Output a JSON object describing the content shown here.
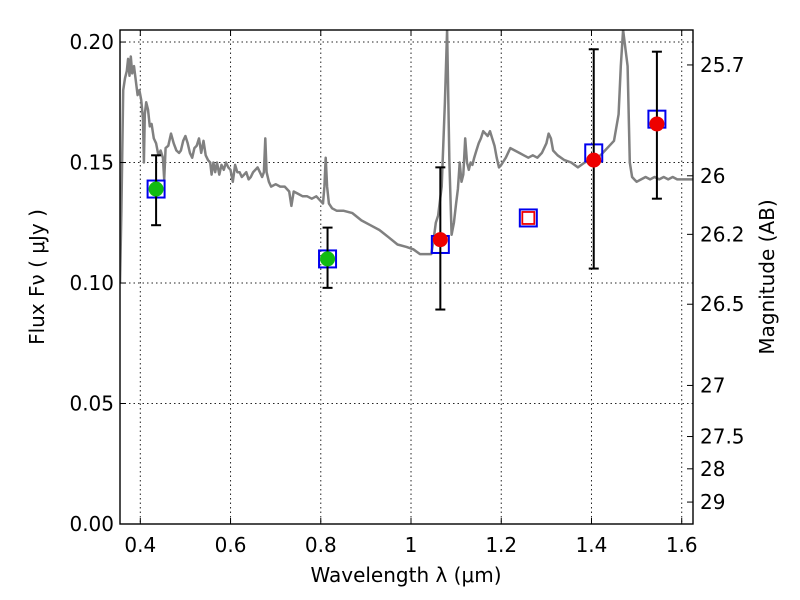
{
  "chart_data": {
    "type": "scatter",
    "xlabel": "Wavelength  λ (μm)",
    "ylabel": "Flux  Fν  ( μJy )",
    "ylabel_right": "Magnitude (AB)",
    "xlim": [
      0.355,
      1.625
    ],
    "ylim": [
      0.0,
      0.205
    ],
    "x_ticks": [
      0.4,
      0.6,
      0.8,
      1.0,
      1.2,
      1.4,
      1.6
    ],
    "x_tick_labels": [
      "0.4",
      "0.6",
      "0.8",
      "1",
      "1.2",
      "1.4",
      "1.6"
    ],
    "y_ticks": [
      0.0,
      0.05,
      0.1,
      0.15,
      0.2
    ],
    "y_tick_labels": [
      "0.00",
      "0.05",
      "0.10",
      "0.15",
      "0.20"
    ],
    "right_ticks": [
      {
        "label": "25.7",
        "flux": 0.1905
      },
      {
        "label": "26",
        "flux": 0.1445
      },
      {
        "label": "26.2",
        "flux": 0.1202
      },
      {
        "label": "26.5",
        "flux": 0.0912
      },
      {
        "label": "27",
        "flux": 0.0575
      },
      {
        "label": "27.5",
        "flux": 0.0363
      },
      {
        "label": "28",
        "flux": 0.0229
      },
      {
        "label": "29",
        "flux": 0.0091
      }
    ],
    "grid": true,
    "series": [
      {
        "role": "model",
        "style": "line",
        "color": "#808080",
        "points": [
          [
            0.355,
            0.1
          ],
          [
            0.358,
            0.13
          ],
          [
            0.362,
            0.18
          ],
          [
            0.366,
            0.185
          ],
          [
            0.37,
            0.188
          ],
          [
            0.373,
            0.193
          ],
          [
            0.376,
            0.186
          ],
          [
            0.379,
            0.194
          ],
          [
            0.382,
            0.187
          ],
          [
            0.386,
            0.19
          ],
          [
            0.39,
            0.184
          ],
          [
            0.394,
            0.178
          ],
          [
            0.398,
            0.18
          ],
          [
            0.402,
            0.176
          ],
          [
            0.406,
            0.168
          ],
          [
            0.408,
            0.15
          ],
          [
            0.41,
            0.17
          ],
          [
            0.413,
            0.175
          ],
          [
            0.417,
            0.172
          ],
          [
            0.421,
            0.165
          ],
          [
            0.425,
            0.166
          ],
          [
            0.43,
            0.16
          ],
          [
            0.435,
            0.158
          ],
          [
            0.44,
            0.153
          ],
          [
            0.445,
            0.155
          ],
          [
            0.45,
            0.152
          ],
          [
            0.453,
            0.143
          ],
          [
            0.456,
            0.156
          ],
          [
            0.462,
            0.157
          ],
          [
            0.468,
            0.162
          ],
          [
            0.474,
            0.158
          ],
          [
            0.48,
            0.155
          ],
          [
            0.486,
            0.154
          ],
          [
            0.49,
            0.155
          ],
          [
            0.495,
            0.159
          ],
          [
            0.5,
            0.161
          ],
          [
            0.505,
            0.158
          ],
          [
            0.51,
            0.154
          ],
          [
            0.515,
            0.152
          ],
          [
            0.52,
            0.156
          ],
          [
            0.525,
            0.157
          ],
          [
            0.53,
            0.16
          ],
          [
            0.535,
            0.154
          ],
          [
            0.54,
            0.159
          ],
          [
            0.545,
            0.153
          ],
          [
            0.55,
            0.151
          ],
          [
            0.555,
            0.15
          ],
          [
            0.558,
            0.145
          ],
          [
            0.562,
            0.15
          ],
          [
            0.566,
            0.146
          ],
          [
            0.57,
            0.15
          ],
          [
            0.575,
            0.145
          ],
          [
            0.58,
            0.149
          ],
          [
            0.585,
            0.147
          ],
          [
            0.59,
            0.15
          ],
          [
            0.595,
            0.148
          ],
          [
            0.6,
            0.147
          ],
          [
            0.605,
            0.142
          ],
          [
            0.61,
            0.149
          ],
          [
            0.615,
            0.146
          ],
          [
            0.62,
            0.146
          ],
          [
            0.625,
            0.144
          ],
          [
            0.63,
            0.145
          ],
          [
            0.635,
            0.146
          ],
          [
            0.64,
            0.143
          ],
          [
            0.645,
            0.144
          ],
          [
            0.65,
            0.146
          ],
          [
            0.655,
            0.147
          ],
          [
            0.66,
            0.148
          ],
          [
            0.665,
            0.146
          ],
          [
            0.67,
            0.144
          ],
          [
            0.674,
            0.146
          ],
          [
            0.677,
            0.16
          ],
          [
            0.68,
            0.146
          ],
          [
            0.685,
            0.142
          ],
          [
            0.69,
            0.14
          ],
          [
            0.7,
            0.141
          ],
          [
            0.71,
            0.14
          ],
          [
            0.72,
            0.14
          ],
          [
            0.73,
            0.138
          ],
          [
            0.735,
            0.132
          ],
          [
            0.74,
            0.138
          ],
          [
            0.75,
            0.137
          ],
          [
            0.76,
            0.136
          ],
          [
            0.77,
            0.136
          ],
          [
            0.78,
            0.135
          ],
          [
            0.79,
            0.136
          ],
          [
            0.8,
            0.134
          ],
          [
            0.805,
            0.133
          ],
          [
            0.808,
            0.14
          ],
          [
            0.811,
            0.152
          ],
          [
            0.814,
            0.14
          ],
          [
            0.818,
            0.133
          ],
          [
            0.825,
            0.131
          ],
          [
            0.835,
            0.13
          ],
          [
            0.85,
            0.13
          ],
          [
            0.87,
            0.129
          ],
          [
            0.89,
            0.126
          ],
          [
            0.91,
            0.124
          ],
          [
            0.93,
            0.122
          ],
          [
            0.95,
            0.119
          ],
          [
            0.97,
            0.116
          ],
          [
            0.99,
            0.115
          ],
          [
            1.005,
            0.114
          ],
          [
            1.02,
            0.112
          ],
          [
            1.035,
            0.112
          ],
          [
            1.045,
            0.112
          ],
          [
            1.05,
            0.118
          ],
          [
            1.055,
            0.125
          ],
          [
            1.06,
            0.128
          ],
          [
            1.068,
            0.14
          ],
          [
            1.075,
            0.175
          ],
          [
            1.08,
            0.205
          ],
          [
            1.085,
            0.15
          ],
          [
            1.09,
            0.12
          ],
          [
            1.095,
            0.125
          ],
          [
            1.1,
            0.133
          ],
          [
            1.104,
            0.139
          ],
          [
            1.108,
            0.15
          ],
          [
            1.112,
            0.142
          ],
          [
            1.116,
            0.145
          ],
          [
            1.12,
            0.16
          ],
          [
            1.124,
            0.15
          ],
          [
            1.128,
            0.147
          ],
          [
            1.132,
            0.15
          ],
          [
            1.136,
            0.149
          ],
          [
            1.14,
            0.152
          ],
          [
            1.145,
            0.155
          ],
          [
            1.15,
            0.158
          ],
          [
            1.155,
            0.16
          ],
          [
            1.16,
            0.163
          ],
          [
            1.165,
            0.162
          ],
          [
            1.17,
            0.161
          ],
          [
            1.175,
            0.163
          ],
          [
            1.18,
            0.16
          ],
          [
            1.185,
            0.157
          ],
          [
            1.19,
            0.152
          ],
          [
            1.195,
            0.148
          ],
          [
            1.2,
            0.149
          ],
          [
            1.21,
            0.152
          ],
          [
            1.22,
            0.156
          ],
          [
            1.23,
            0.155
          ],
          [
            1.24,
            0.154
          ],
          [
            1.25,
            0.153
          ],
          [
            1.26,
            0.152
          ],
          [
            1.27,
            0.153
          ],
          [
            1.28,
            0.152
          ],
          [
            1.29,
            0.154
          ],
          [
            1.3,
            0.158
          ],
          [
            1.305,
            0.162
          ],
          [
            1.31,
            0.16
          ],
          [
            1.315,
            0.155
          ],
          [
            1.325,
            0.153
          ],
          [
            1.34,
            0.151
          ],
          [
            1.355,
            0.15
          ],
          [
            1.37,
            0.148
          ],
          [
            1.385,
            0.15
          ],
          [
            1.4,
            0.151
          ],
          [
            1.41,
            0.152
          ],
          [
            1.42,
            0.153
          ],
          [
            1.43,
            0.155
          ],
          [
            1.44,
            0.157
          ],
          [
            1.45,
            0.159
          ],
          [
            1.46,
            0.17
          ],
          [
            1.465,
            0.19
          ],
          [
            1.47,
            0.205
          ],
          [
            1.48,
            0.19
          ],
          [
            1.485,
            0.15
          ],
          [
            1.49,
            0.144
          ],
          [
            1.495,
            0.143
          ],
          [
            1.5,
            0.142
          ],
          [
            1.51,
            0.143
          ],
          [
            1.52,
            0.144
          ],
          [
            1.53,
            0.143
          ],
          [
            1.54,
            0.144
          ],
          [
            1.55,
            0.143
          ],
          [
            1.56,
            0.144
          ],
          [
            1.57,
            0.143
          ],
          [
            1.58,
            0.144
          ],
          [
            1.59,
            0.143
          ],
          [
            1.6,
            0.143
          ],
          [
            1.61,
            0.143
          ],
          [
            1.625,
            0.143
          ]
        ]
      },
      {
        "role": "model_photometry",
        "style": "open_square",
        "color": "#0000ee",
        "points": [
          [
            0.435,
            0.139
          ],
          [
            0.815,
            0.11
          ],
          [
            1.065,
            0.116
          ],
          [
            1.26,
            0.127
          ],
          [
            1.405,
            0.154
          ],
          [
            1.545,
            0.168
          ]
        ]
      },
      {
        "role": "observed_ground",
        "style": "filled_circle",
        "color": "#11bb11",
        "points": [
          {
            "x": 0.435,
            "y": 0.139,
            "err": [
              0.124,
              0.153
            ]
          },
          {
            "x": 0.815,
            "y": 0.11,
            "err": [
              0.098,
              0.123
            ]
          }
        ]
      },
      {
        "role": "observed_nir",
        "style": "filled_circle",
        "color": "#ee0000",
        "points": [
          {
            "x": 1.065,
            "y": 0.118,
            "err": [
              0.089,
              0.148
            ]
          },
          {
            "x": 1.405,
            "y": 0.151,
            "err": [
              0.106,
              0.197
            ]
          },
          {
            "x": 1.545,
            "y": 0.166,
            "err": [
              0.135,
              0.196
            ]
          }
        ]
      },
      {
        "role": "upper_limit",
        "style": "open_square_red",
        "color": "#ee0000",
        "points": [
          [
            1.26,
            0.127
          ]
        ]
      }
    ]
  }
}
